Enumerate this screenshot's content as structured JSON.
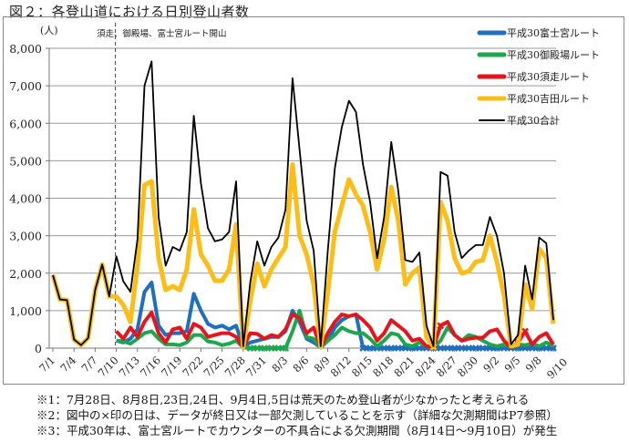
{
  "title": "図２：各登山道における日別登山者数",
  "chart_data": {
    "type": "line",
    "ylabel": "(人)",
    "annotation": "須走、御殿場、富士宮ルート開山",
    "annotation_date": "7/10",
    "ylim": [
      0,
      8000
    ],
    "yticks": [
      0,
      1000,
      2000,
      3000,
      4000,
      5000,
      6000,
      7000,
      8000
    ],
    "ytick_labels": [
      "0",
      "1,000",
      "2,000",
      "3,000",
      "4,000",
      "5,000",
      "6,000",
      "7,000",
      "8,000"
    ],
    "xtick_labels": [
      "7/1",
      "7/4",
      "7/7",
      "7/10",
      "7/13",
      "7/16",
      "7/19",
      "7/22",
      "7/25",
      "7/28",
      "7/31",
      "8/3",
      "8/6",
      "8/9",
      "8/12",
      "8/15",
      "8/18",
      "8/21",
      "8/24",
      "8/27",
      "8/30",
      "9/2",
      "9/5",
      "9/8",
      "9/10"
    ],
    "grid": true,
    "legend_position": "top-right",
    "x": [
      "7/1",
      "7/2",
      "7/3",
      "7/4",
      "7/5",
      "7/6",
      "7/7",
      "7/8",
      "7/9",
      "7/10",
      "7/11",
      "7/12",
      "7/13",
      "7/14",
      "7/15",
      "7/16",
      "7/17",
      "7/18",
      "7/19",
      "7/20",
      "7/21",
      "7/22",
      "7/23",
      "7/24",
      "7/25",
      "7/26",
      "7/27",
      "7/28",
      "7/29",
      "7/30",
      "7/31",
      "8/1",
      "8/2",
      "8/3",
      "8/4",
      "8/5",
      "8/6",
      "8/7",
      "8/8",
      "8/9",
      "8/10",
      "8/11",
      "8/12",
      "8/13",
      "8/14",
      "8/15",
      "8/16",
      "8/17",
      "8/18",
      "8/19",
      "8/20",
      "8/21",
      "8/22",
      "8/23",
      "8/24",
      "8/25",
      "8/26",
      "8/27",
      "8/28",
      "8/29",
      "8/30",
      "8/31",
      "9/1",
      "9/2",
      "9/3",
      "9/4",
      "9/5",
      "9/6",
      "9/7",
      "9/8",
      "9/9",
      "9/10"
    ],
    "series": [
      {
        "name": "平成30富士宮ルート",
        "color": "#1f6fbf",
        "width": 4,
        "values": [
          null,
          null,
          null,
          null,
          null,
          null,
          null,
          null,
          null,
          200,
          150,
          250,
          500,
          1500,
          1750,
          600,
          350,
          400,
          400,
          450,
          1450,
          1000,
          650,
          550,
          600,
          500,
          600,
          20,
          150,
          200,
          250,
          300,
          300,
          450,
          1000,
          700,
          250,
          150,
          20,
          200,
          550,
          750,
          850,
          900,
          0,
          0,
          0,
          0,
          0,
          0,
          0,
          0,
          0,
          0,
          0,
          0,
          0,
          0,
          0,
          0,
          0,
          0,
          0,
          0,
          0,
          0,
          0,
          0,
          0,
          0,
          0,
          0
        ],
        "missing": [
          "8/14",
          "8/15",
          "8/16",
          "8/17",
          "8/18",
          "8/19",
          "8/20",
          "8/21",
          "8/22",
          "8/23",
          "8/24",
          "8/25",
          "8/26",
          "8/27",
          "8/28",
          "8/29",
          "8/30",
          "8/31",
          "9/1",
          "9/2",
          "9/3",
          "9/4",
          "9/5",
          "9/6",
          "9/7",
          "9/8",
          "9/9",
          "9/10"
        ]
      },
      {
        "name": "平成30御殿場ルート",
        "color": "#1aa84a",
        "width": 4,
        "values": [
          null,
          null,
          null,
          null,
          null,
          null,
          null,
          null,
          null,
          200,
          180,
          120,
          250,
          400,
          450,
          250,
          100,
          100,
          80,
          150,
          350,
          350,
          180,
          150,
          80,
          120,
          200,
          20,
          0,
          0,
          0,
          0,
          0,
          0,
          450,
          1000,
          300,
          250,
          20,
          200,
          350,
          550,
          450,
          400,
          400,
          250,
          50,
          200,
          400,
          350,
          100,
          50,
          150,
          50,
          20,
          200,
          550,
          350,
          200,
          350,
          300,
          200,
          100,
          50,
          100,
          20,
          100,
          80,
          120,
          50,
          150,
          50
        ],
        "missing": [
          "7/29",
          "7/30",
          "7/31",
          "8/1",
          "8/2",
          "8/3"
        ]
      },
      {
        "name": "平成30須走ルート",
        "color": "#e8141c",
        "width": 4,
        "values": [
          null,
          null,
          null,
          null,
          null,
          null,
          null,
          null,
          null,
          450,
          250,
          550,
          300,
          700,
          950,
          400,
          150,
          500,
          550,
          250,
          650,
          550,
          300,
          350,
          400,
          400,
          300,
          20,
          400,
          380,
          250,
          350,
          300,
          500,
          900,
          800,
          400,
          550,
          20,
          400,
          700,
          900,
          850,
          900,
          750,
          550,
          200,
          400,
          750,
          600,
          450,
          200,
          250,
          50,
          20,
          600,
          700,
          350,
          200,
          250,
          280,
          280,
          450,
          500,
          200,
          20,
          150,
          450,
          100,
          300,
          400,
          100
        ],
        "missing": [
          "8/24",
          "8/25",
          "9/5",
          "9/6"
        ]
      },
      {
        "name": "平成30吉田ルート",
        "color": "#fbbd16",
        "width": 5,
        "values": [
          1950,
          1300,
          1280,
          230,
          80,
          270,
          1550,
          2230,
          1380,
          1380,
          1150,
          700,
          2200,
          4350,
          4450,
          2400,
          1550,
          1650,
          1550,
          2100,
          3700,
          2500,
          2200,
          1800,
          1800,
          2100,
          3300,
          30,
          1250,
          2250,
          1650,
          2100,
          2400,
          2700,
          4900,
          3000,
          2500,
          1700,
          30,
          1500,
          3100,
          3800,
          4500,
          4100,
          3800,
          3100,
          2100,
          2900,
          4300,
          3400,
          1700,
          2000,
          2150,
          300,
          30,
          3900,
          3400,
          2400,
          2000,
          2050,
          2300,
          2350,
          3000,
          2300,
          1400,
          50,
          100,
          1700,
          1050,
          2650,
          2400,
          650
        ],
        "missing": [
          "8/24"
        ]
      },
      {
        "name": "平成30合計",
        "color": "#000000",
        "width": 1.8,
        "values": [
          1950,
          1300,
          1280,
          230,
          80,
          270,
          1550,
          2230,
          1380,
          2450,
          1780,
          1500,
          2900,
          7000,
          7650,
          3500,
          2200,
          2700,
          2600,
          3100,
          6200,
          4400,
          3200,
          2850,
          2900,
          3100,
          4450,
          50,
          1750,
          2850,
          2200,
          2700,
          2950,
          3700,
          7200,
          5300,
          3400,
          2600,
          50,
          2600,
          4800,
          5900,
          6600,
          6300,
          4900,
          3900,
          2400,
          3500,
          5500,
          4200,
          2350,
          2300,
          2550,
          600,
          50,
          4700,
          4600,
          3100,
          2400,
          2600,
          2750,
          2750,
          3500,
          3000,
          2000,
          100,
          350,
          2200,
          1300,
          2950,
          2800,
          750
        ]
      }
    ]
  },
  "notes": [
    "※1：7月28日、8月8日,23日,24日、9月4日,5日は荒天のため登山者が少なかったと考えられる",
    "※2：図中の×印の日は、データが終日又は一部欠測していることを示す（詳細な欠測期間はP7参照）",
    "※3：平成30年は、富士宮ルートでカウンターの不具合による欠測期間（8月14日～9月10日）が発生"
  ]
}
